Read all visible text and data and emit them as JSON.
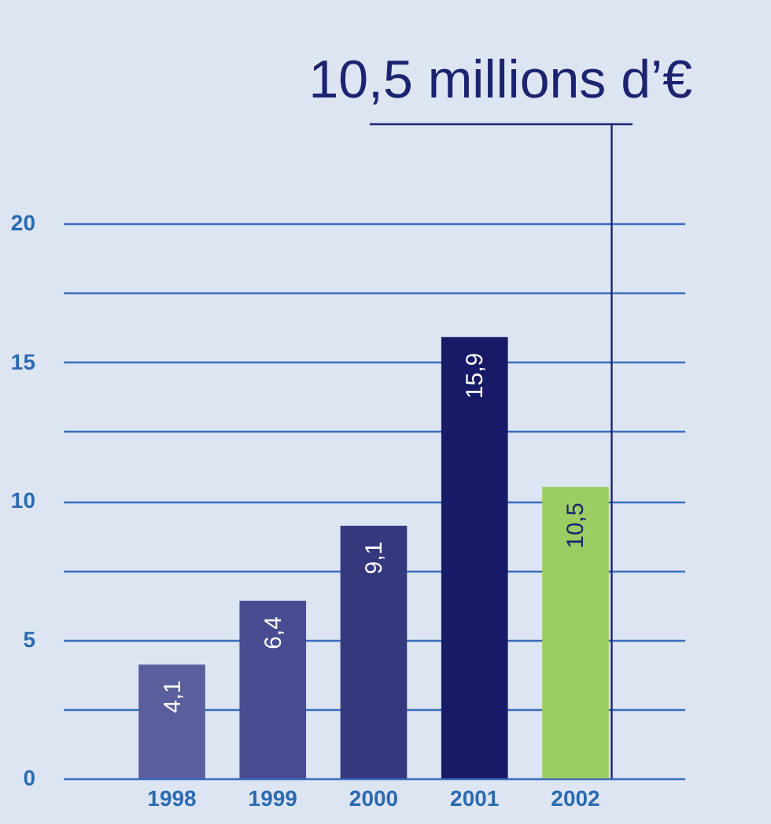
{
  "chart_data": {
    "type": "bar",
    "categories": [
      "1998",
      "1999",
      "2000",
      "2001",
      "2002"
    ],
    "values": [
      4.1,
      6.4,
      9.1,
      15.9,
      10.5
    ],
    "colors": [
      "#5a5e9d",
      "#484c90",
      "#34387c",
      "#171b67",
      "#9ccd62"
    ],
    "value_labels": [
      "4,1",
      "6,4",
      "9,1",
      "15,9",
      "10,5"
    ],
    "ylim": [
      0,
      20
    ],
    "yticks": [
      0,
      {
        "value": 2.5,
        "label": null
      },
      5,
      {
        "value": 7.5,
        "label": null
      },
      10,
      {
        "value": 12.5,
        "label": null
      },
      15,
      {
        "value": 17.5,
        "label": null
      },
      20
    ],
    "grid": true,
    "ref_lines": [
      {
        "axis": "x",
        "value": "2002",
        "label": "10,5 millions d’€",
        "color": "#1c2470"
      }
    ]
  }
}
